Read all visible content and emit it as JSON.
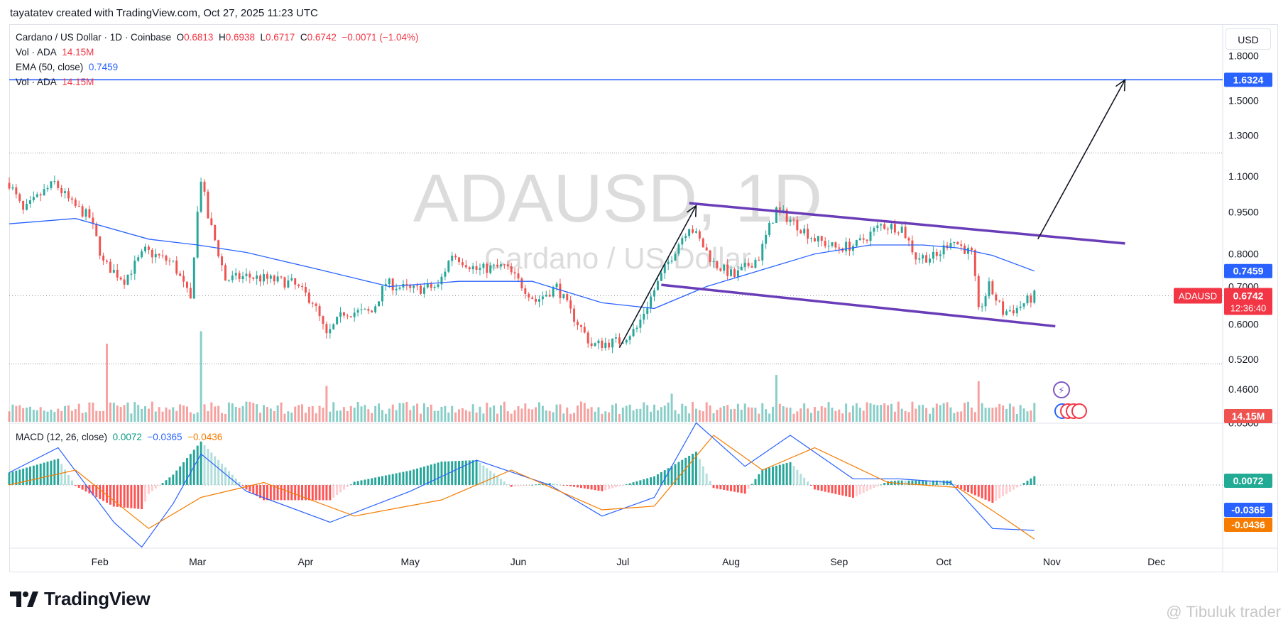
{
  "header": {
    "attribution": "tayatatev created with TradingView.com, Oct 27, 2025 11:23 UTC"
  },
  "legend": {
    "symbol": "Cardano / US Dollar · 1D · Coinbase",
    "o_label": "O",
    "o_value": "0.6813",
    "h_label": "H",
    "h_value": "0.6938",
    "l_label": "L",
    "l_value": "0.6717",
    "c_label": "C",
    "c_value": "0.6742",
    "change": "−0.0071 (−1.04%)",
    "vol1_label": "Vol · ADA",
    "vol1_value": "14.15M",
    "ema_label": "EMA (50, close)",
    "ema_value": "0.7459",
    "vol2_label": "Vol · ADA",
    "vol2_value": "14.15M",
    "macd_label": "MACD (12, 26, close)",
    "macd_hist": "0.0072",
    "macd_line": "−0.0365",
    "macd_signal": "−0.0436"
  },
  "currency_button": "USD",
  "brand": {
    "name": "TradingView"
  },
  "watermark": {
    "main": "ADAUSD, 1D",
    "sub": "Cardano / US Dollar",
    "author": "@ Tibuluk trader"
  },
  "colors": {
    "up": "#26a69a",
    "down": "#ef5350",
    "ema": "#2962ff",
    "macd": "#2962ff",
    "signal": "#f57c00",
    "channel": "#6a3db8",
    "target_line": "#2962ff",
    "price_badge": "#f23645",
    "ema_badge": "#2962ff",
    "hist_badge": "#22ab94"
  },
  "chart_data": {
    "type": "candlestick",
    "symbol": "ADAUSD",
    "scale": "log",
    "ylim": [
      0.4,
      2.05
    ],
    "price_axis_ticks": [
      "1.8000",
      "1.5000",
      "1.3000",
      "1.1000",
      "0.9500",
      "0.8000",
      "0.7000",
      "0.6000",
      "0.5200",
      "0.4600",
      "0.4000"
    ],
    "x_axis_ticks": [
      "Feb",
      "Mar",
      "Apr",
      "May",
      "Jun",
      "Jul",
      "Aug",
      "Sep",
      "Oct",
      "Nov",
      "Dec"
    ],
    "date_range": [
      "2025-01-06",
      "2025-12-20"
    ],
    "badges": {
      "target": "1.6324",
      "ema": "0.7459",
      "price_symbol": "ADAUSD",
      "price": "0.6742",
      "countdown": "12:36:40",
      "volume": "14.15M",
      "macd_hist": "0.0072",
      "macd_line": "-0.0365",
      "macd_signal": "-0.0436"
    },
    "price_path": [
      [
        "2025-01-06",
        1.07
      ],
      [
        "2025-01-10",
        0.95
      ],
      [
        "2025-01-15",
        1.02
      ],
      [
        "2025-01-19",
        1.07
      ],
      [
        "2025-01-24",
        0.98
      ],
      [
        "2025-01-29",
        0.93
      ],
      [
        "2025-02-02",
        0.77
      ],
      [
        "2025-02-08",
        0.72
      ],
      [
        "2025-02-14",
        0.81
      ],
      [
        "2025-02-22",
        0.77
      ],
      [
        "2025-02-27",
        0.66
      ],
      [
        "2025-03-02",
        1.09
      ],
      [
        "2025-03-04",
        0.93
      ],
      [
        "2025-03-09",
        0.72
      ],
      [
        "2025-03-15",
        0.73
      ],
      [
        "2025-03-22",
        0.72
      ],
      [
        "2025-03-28",
        0.71
      ],
      [
        "2025-04-03",
        0.66
      ],
      [
        "2025-04-07",
        0.57
      ],
      [
        "2025-04-12",
        0.63
      ],
      [
        "2025-04-20",
        0.63
      ],
      [
        "2025-04-24",
        0.71
      ],
      [
        "2025-05-01",
        0.69
      ],
      [
        "2025-05-09",
        0.7
      ],
      [
        "2025-05-13",
        0.8
      ],
      [
        "2025-05-20",
        0.75
      ],
      [
        "2025-05-28",
        0.76
      ],
      [
        "2025-06-06",
        0.66
      ],
      [
        "2025-06-12",
        0.7
      ],
      [
        "2025-06-16",
        0.63
      ],
      [
        "2025-06-22",
        0.55
      ],
      [
        "2025-06-30",
        0.56
      ],
      [
        "2025-07-05",
        0.59
      ],
      [
        "2025-07-11",
        0.71
      ],
      [
        "2025-07-20",
        0.9
      ],
      [
        "2025-07-27",
        0.77
      ],
      [
        "2025-08-02",
        0.73
      ],
      [
        "2025-08-09",
        0.79
      ],
      [
        "2025-08-14",
        0.96
      ],
      [
        "2025-08-19",
        0.91
      ],
      [
        "2025-08-25",
        0.85
      ],
      [
        "2025-08-31",
        0.82
      ],
      [
        "2025-09-06",
        0.83
      ],
      [
        "2025-09-13",
        0.9
      ],
      [
        "2025-09-19",
        0.89
      ],
      [
        "2025-09-23",
        0.79
      ],
      [
        "2025-09-29",
        0.79
      ],
      [
        "2025-10-03",
        0.85
      ],
      [
        "2025-10-09",
        0.8
      ],
      [
        "2025-10-11",
        0.63
      ],
      [
        "2025-10-14",
        0.7
      ],
      [
        "2025-10-18",
        0.63
      ],
      [
        "2025-10-22",
        0.64
      ],
      [
        "2025-10-27",
        0.674
      ]
    ],
    "ema50": [
      [
        "2025-01-06",
        0.905
      ],
      [
        "2025-01-25",
        0.925
      ],
      [
        "2025-02-15",
        0.85
      ],
      [
        "2025-03-01",
        0.83
      ],
      [
        "2025-03-15",
        0.805
      ],
      [
        "2025-04-05",
        0.75
      ],
      [
        "2025-04-25",
        0.7
      ],
      [
        "2025-05-15",
        0.715
      ],
      [
        "2025-06-05",
        0.715
      ],
      [
        "2025-06-25",
        0.655
      ],
      [
        "2025-07-10",
        0.64
      ],
      [
        "2025-07-25",
        0.7
      ],
      [
        "2025-08-10",
        0.75
      ],
      [
        "2025-08-25",
        0.8
      ],
      [
        "2025-09-10",
        0.83
      ],
      [
        "2025-09-25",
        0.83
      ],
      [
        "2025-10-05",
        0.82
      ],
      [
        "2025-10-15",
        0.795
      ],
      [
        "2025-10-27",
        0.7459
      ]
    ],
    "volume_spikes_M": [
      [
        "2025-02-03",
        50
      ],
      [
        "2025-03-02",
        58
      ],
      [
        "2025-04-07",
        23
      ],
      [
        "2025-07-15",
        18
      ],
      [
        "2025-08-14",
        30
      ],
      [
        "2025-10-11",
        26
      ]
    ],
    "macd_line": [
      [
        "2025-01-06",
        0.01
      ],
      [
        "2025-01-20",
        0.03
      ],
      [
        "2025-02-05",
        -0.03
      ],
      [
        "2025-02-13",
        -0.05
      ],
      [
        "2025-02-22",
        -0.015
      ],
      [
        "2025-03-02",
        0.025
      ],
      [
        "2025-03-15",
        -0.005
      ],
      [
        "2025-04-08",
        -0.03
      ],
      [
        "2025-05-01",
        -0.005
      ],
      [
        "2025-05-20",
        0.02
      ],
      [
        "2025-06-10",
        0.0
      ],
      [
        "2025-06-25",
        -0.025
      ],
      [
        "2025-07-10",
        -0.01
      ],
      [
        "2025-07-22",
        0.05
      ],
      [
        "2025-08-05",
        0.015
      ],
      [
        "2025-08-18",
        0.04
      ],
      [
        "2025-09-05",
        0.005
      ],
      [
        "2025-09-18",
        0.005
      ],
      [
        "2025-10-03",
        0.002
      ],
      [
        "2025-10-15",
        -0.035
      ],
      [
        "2025-10-27",
        -0.0365
      ]
    ],
    "signal_line": [
      [
        "2025-01-06",
        0.0
      ],
      [
        "2025-01-25",
        0.012
      ],
      [
        "2025-02-15",
        -0.035
      ],
      [
        "2025-03-02",
        -0.01
      ],
      [
        "2025-03-20",
        0.002
      ],
      [
        "2025-04-15",
        -0.025
      ],
      [
        "2025-05-10",
        -0.012
      ],
      [
        "2025-05-30",
        0.012
      ],
      [
        "2025-06-25",
        -0.02
      ],
      [
        "2025-07-10",
        -0.017
      ],
      [
        "2025-07-27",
        0.04
      ],
      [
        "2025-08-10",
        0.012
      ],
      [
        "2025-08-25",
        0.03
      ],
      [
        "2025-09-15",
        0.002
      ],
      [
        "2025-10-05",
        -0.002
      ],
      [
        "2025-10-20",
        -0.03
      ],
      [
        "2025-10-27",
        -0.0436
      ]
    ],
    "annotations": {
      "channel_upper": [
        [
          "2025-07-20",
          0.985
        ],
        [
          "2025-11-22",
          0.835
        ]
      ],
      "channel_lower": [
        [
          "2025-07-12",
          0.705
        ],
        [
          "2025-11-02",
          0.595
        ]
      ],
      "arrow_1": [
        [
          "2025-06-30",
          0.545
        ],
        [
          "2025-07-22",
          0.975
        ]
      ],
      "arrow_2": [
        [
          "2025-10-28",
          0.85
        ],
        [
          "2025-11-22",
          1.6324
        ]
      ],
      "target_level": 1.6324
    }
  }
}
